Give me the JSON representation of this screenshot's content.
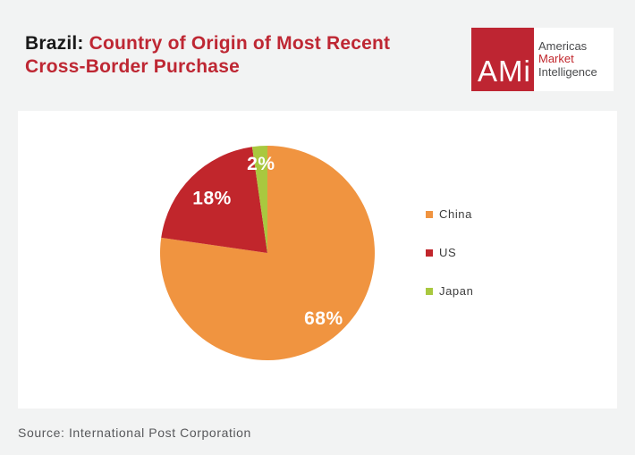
{
  "page": {
    "background_color": "#f2f3f3",
    "panel_color": "#ffffff"
  },
  "header": {
    "title_prefix": "Brazil:",
    "title_line1": "Country of Origin of Most Recent",
    "title_line2": "Cross-Border Purchase",
    "title_prefix_color": "#191919",
    "title_color": "#be2733"
  },
  "logo": {
    "monogram": "AMi",
    "square_color": "#be2532",
    "lines": [
      {
        "text": "Americas",
        "color": "#4a4b4d"
      },
      {
        "text": "Market",
        "color": "#c1272d"
      },
      {
        "text": "Intelligence",
        "color": "#4a4b4d"
      }
    ]
  },
  "chart_data": {
    "type": "pie",
    "title": "Brazil: Country of Origin of Most Recent Cross-Border Purchase",
    "categories": [
      "China",
      "US",
      "Japan"
    ],
    "values": [
      68,
      18,
      2
    ],
    "labels": [
      "68%",
      "18%",
      "2%"
    ],
    "colors": [
      "#f09440",
      "#c1262c",
      "#a9c83f"
    ],
    "label_color": "#ffffff",
    "label_radius_fraction": [
      0.8,
      0.73,
      0.84
    ],
    "start_angle_deg": 0,
    "direction": "clockwise",
    "displayed_total": 88,
    "legend_position": "right",
    "source": "Source: International Post Corporation"
  },
  "footer": {
    "source": "Source: International Post Corporation"
  }
}
